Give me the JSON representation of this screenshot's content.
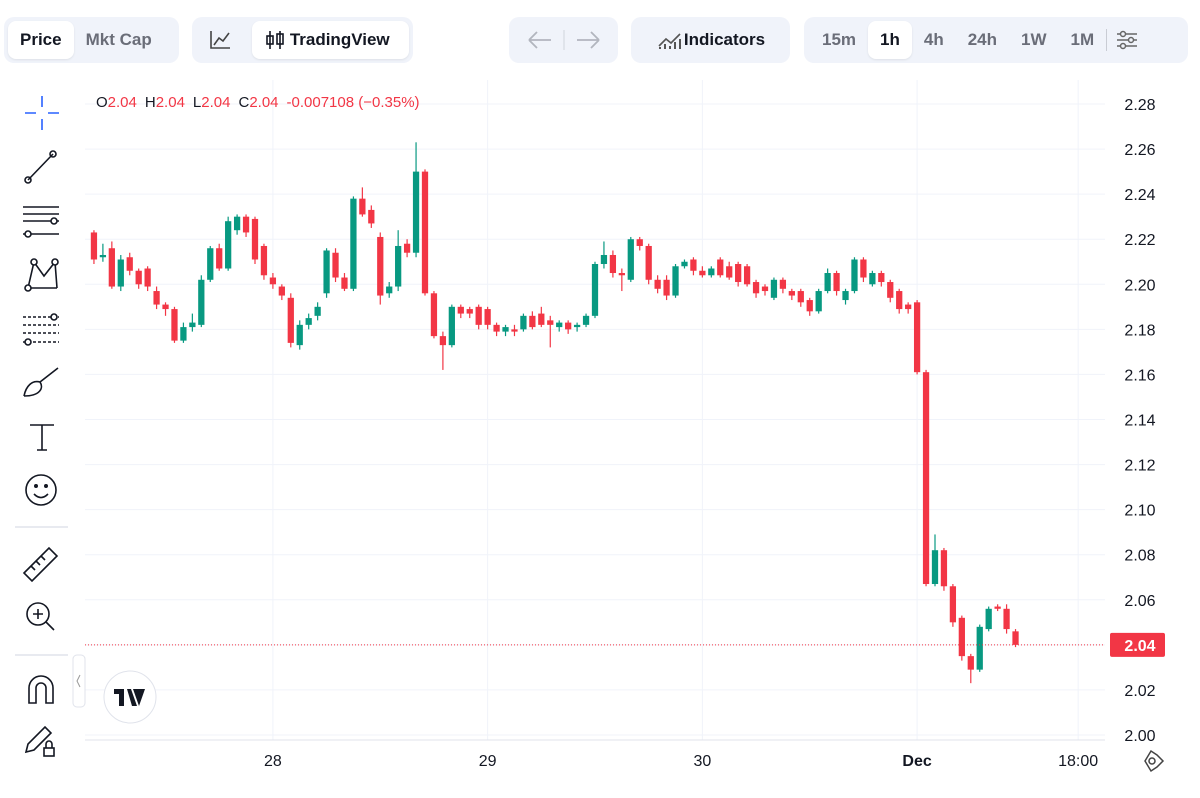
{
  "toolbar": {
    "view_tabs": [
      "Price",
      "Mkt Cap"
    ],
    "chart_tab": "TradingView",
    "indicators": "Indicators",
    "timeframes": [
      "15m",
      "1h",
      "4h",
      "24h",
      "1W",
      "1M"
    ]
  },
  "chart_data": {
    "type": "candlestick",
    "header": [
      {
        "key": "O",
        "value": "2.04"
      },
      {
        "key": "H",
        "value": "2.04"
      },
      {
        "key": "L",
        "value": "2.04"
      },
      {
        "key": "C",
        "value": "2.04"
      }
    ],
    "change": "-0.007108 (−0.35%)",
    "up_color": "#089981",
    "down_color": "#f23645",
    "xlim": [
      -1,
      113
    ],
    "ylim": [
      2.0,
      2.28
    ],
    "xticks": [
      {
        "value": 20,
        "label": "28"
      },
      {
        "value": 44,
        "label": "29"
      },
      {
        "value": 68,
        "label": "30"
      },
      {
        "value": 92,
        "label": "Dec"
      },
      {
        "value": 110,
        "label": "18:00"
      }
    ],
    "yticks": [
      {
        "value": 2.0,
        "label": "2.00"
      },
      2.02,
      2.04,
      2.06,
      2.08,
      {
        "value": 2.1,
        "label": "2.10"
      },
      2.12,
      2.14,
      2.16,
      2.18,
      {
        "value": 2.2,
        "label": "2.20"
      },
      2.22,
      2.24,
      2.26,
      2.28
    ],
    "current_price": {
      "value": 2.04,
      "label": "2.04"
    },
    "grid": true,
    "candles": [
      [
        2.223,
        2.224,
        2.209,
        2.211
      ],
      [
        2.212,
        2.218,
        2.21,
        2.213
      ],
      [
        2.216,
        2.219,
        2.198,
        2.199
      ],
      [
        2.199,
        2.213,
        2.197,
        2.211
      ],
      [
        2.212,
        2.214,
        2.204,
        2.206
      ],
      [
        2.206,
        2.207,
        2.198,
        2.2
      ],
      [
        2.207,
        2.208,
        2.197,
        2.199
      ],
      [
        2.197,
        2.199,
        2.189,
        2.191
      ],
      [
        2.191,
        2.192,
        2.186,
        2.189
      ],
      [
        2.189,
        2.19,
        2.174,
        2.175
      ],
      [
        2.175,
        2.183,
        2.174,
        2.181
      ],
      [
        2.181,
        2.187,
        2.179,
        2.183
      ],
      [
        2.182,
        2.204,
        2.181,
        2.202
      ],
      [
        2.202,
        2.217,
        2.201,
        2.216
      ],
      [
        2.216,
        2.218,
        2.206,
        2.207
      ],
      [
        2.207,
        2.23,
        2.206,
        2.228
      ],
      [
        2.224,
        2.231,
        2.222,
        2.23
      ],
      [
        2.23,
        2.231,
        2.221,
        2.223
      ],
      [
        2.229,
        2.23,
        2.209,
        2.211
      ],
      [
        2.217,
        2.218,
        2.202,
        2.204
      ],
      [
        2.203,
        2.205,
        2.198,
        2.2
      ],
      [
        2.199,
        2.2,
        2.193,
        2.195
      ],
      [
        2.194,
        2.196,
        2.172,
        2.174
      ],
      [
        2.173,
        2.184,
        2.171,
        2.182
      ],
      [
        2.182,
        2.187,
        2.18,
        2.185
      ],
      [
        2.186,
        2.192,
        2.184,
        2.19
      ],
      [
        2.196,
        2.216,
        2.194,
        2.215
      ],
      [
        2.214,
        2.216,
        2.201,
        2.203
      ],
      [
        2.203,
        2.205,
        2.197,
        2.198
      ],
      [
        2.198,
        2.239,
        2.197,
        2.238
      ],
      [
        2.238,
        2.243,
        2.23,
        2.231
      ],
      [
        2.233,
        2.235,
        2.225,
        2.227
      ],
      [
        2.221,
        2.223,
        2.191,
        2.195
      ],
      [
        2.196,
        2.201,
        2.194,
        2.199
      ],
      [
        2.199,
        2.224,
        2.197,
        2.217
      ],
      [
        2.218,
        2.22,
        2.212,
        2.214
      ],
      [
        2.214,
        2.263,
        2.212,
        2.25
      ],
      [
        2.25,
        2.251,
        2.195,
        2.196
      ],
      [
        2.196,
        2.197,
        2.176,
        2.177
      ],
      [
        2.177,
        2.179,
        2.162,
        2.173
      ],
      [
        2.173,
        2.191,
        2.172,
        2.19
      ],
      [
        2.19,
        2.191,
        2.185,
        2.187
      ],
      [
        2.189,
        2.19,
        2.185,
        2.187
      ],
      [
        2.19,
        2.191,
        2.18,
        2.182
      ],
      [
        2.189,
        2.19,
        2.18,
        2.182
      ],
      [
        2.182,
        2.183,
        2.177,
        2.179
      ],
      [
        2.179,
        2.182,
        2.177,
        2.181
      ],
      [
        2.18,
        2.182,
        2.177,
        2.179
      ],
      [
        2.18,
        2.187,
        2.179,
        2.186
      ],
      [
        2.186,
        2.188,
        2.18,
        2.181
      ],
      [
        2.187,
        2.19,
        2.181,
        2.182
      ],
      [
        2.184,
        2.186,
        2.172,
        2.182
      ],
      [
        2.181,
        2.184,
        2.179,
        2.183
      ],
      [
        2.183,
        2.184,
        2.178,
        2.18
      ],
      [
        2.181,
        2.183,
        2.179,
        2.182
      ],
      [
        2.182,
        2.187,
        2.181,
        2.186
      ],
      [
        2.186,
        2.21,
        2.185,
        2.209
      ],
      [
        2.209,
        2.219,
        2.207,
        2.213
      ],
      [
        2.213,
        2.215,
        2.203,
        2.205
      ],
      [
        2.205,
        2.207,
        2.197,
        2.204
      ],
      [
        2.202,
        2.221,
        2.201,
        2.22
      ],
      [
        2.22,
        2.221,
        2.215,
        2.217
      ],
      [
        2.217,
        2.218,
        2.2,
        2.202
      ],
      [
        2.202,
        2.204,
        2.196,
        2.198
      ],
      [
        2.202,
        2.204,
        2.193,
        2.195
      ],
      [
        2.195,
        2.209,
        2.194,
        2.208
      ],
      [
        2.208,
        2.211,
        2.207,
        2.21
      ],
      [
        2.211,
        2.212,
        2.204,
        2.206
      ],
      [
        2.206,
        2.208,
        2.203,
        2.204
      ],
      [
        2.204,
        2.208,
        2.203,
        2.207
      ],
      [
        2.211,
        2.212,
        2.203,
        2.204
      ],
      [
        2.208,
        2.21,
        2.202,
        2.203
      ],
      [
        2.209,
        2.21,
        2.199,
        2.201
      ],
      [
        2.208,
        2.209,
        2.199,
        2.2
      ],
      [
        2.201,
        2.202,
        2.194,
        2.196
      ],
      [
        2.199,
        2.2,
        2.195,
        2.197
      ],
      [
        2.194,
        2.203,
        2.193,
        2.202
      ],
      [
        2.202,
        2.203,
        2.196,
        2.198
      ],
      [
        2.197,
        2.198,
        2.193,
        2.195
      ],
      [
        2.197,
        2.198,
        2.19,
        2.192
      ],
      [
        2.193,
        2.194,
        2.186,
        2.188
      ],
      [
        2.188,
        2.198,
        2.187,
        2.197
      ],
      [
        2.197,
        2.207,
        2.196,
        2.205
      ],
      [
        2.205,
        2.206,
        2.195,
        2.197
      ],
      [
        2.193,
        2.198,
        2.191,
        2.197
      ],
      [
        2.197,
        2.212,
        2.196,
        2.211
      ],
      [
        2.211,
        2.212,
        2.201,
        2.203
      ],
      [
        2.2,
        2.206,
        2.199,
        2.205
      ],
      [
        2.205,
        2.206,
        2.199,
        2.201
      ],
      [
        2.201,
        2.202,
        2.192,
        2.194
      ],
      [
        2.197,
        2.198,
        2.187,
        2.189
      ],
      [
        2.191,
        2.192,
        2.187,
        2.189
      ],
      [
        2.192,
        2.193,
        2.16,
        2.161
      ],
      [
        2.161,
        2.162,
        2.066,
        2.067
      ],
      [
        2.067,
        2.089,
        2.066,
        2.082
      ],
      [
        2.082,
        2.083,
        2.064,
        2.066
      ],
      [
        2.066,
        2.067,
        2.048,
        2.05
      ],
      [
        2.052,
        2.053,
        2.033,
        2.035
      ],
      [
        2.035,
        2.036,
        2.023,
        2.029
      ],
      [
        2.029,
        2.049,
        2.028,
        2.048
      ],
      [
        2.047,
        2.057,
        2.046,
        2.056
      ],
      [
        2.057,
        2.058,
        2.055,
        2.056
      ],
      [
        2.056,
        2.058,
        2.045,
        2.047
      ],
      [
        2.046,
        2.047,
        2.039,
        2.04
      ]
    ]
  }
}
